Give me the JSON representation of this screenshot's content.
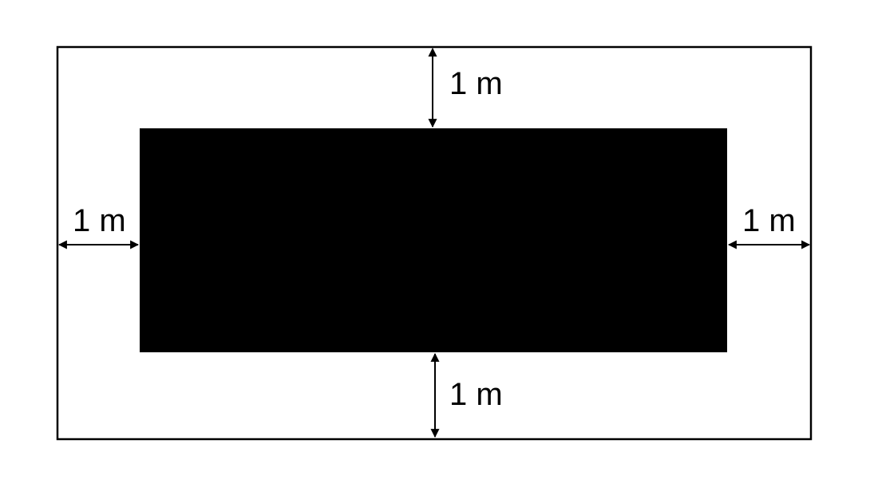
{
  "diagram": {
    "labels": {
      "top": "1 m",
      "left": "1 m",
      "right": "1 m",
      "bottom": "1 m"
    },
    "colors": {
      "background": "#ffffff",
      "outline": "#000000",
      "block": "#000000",
      "arrow": "#000000"
    }
  }
}
